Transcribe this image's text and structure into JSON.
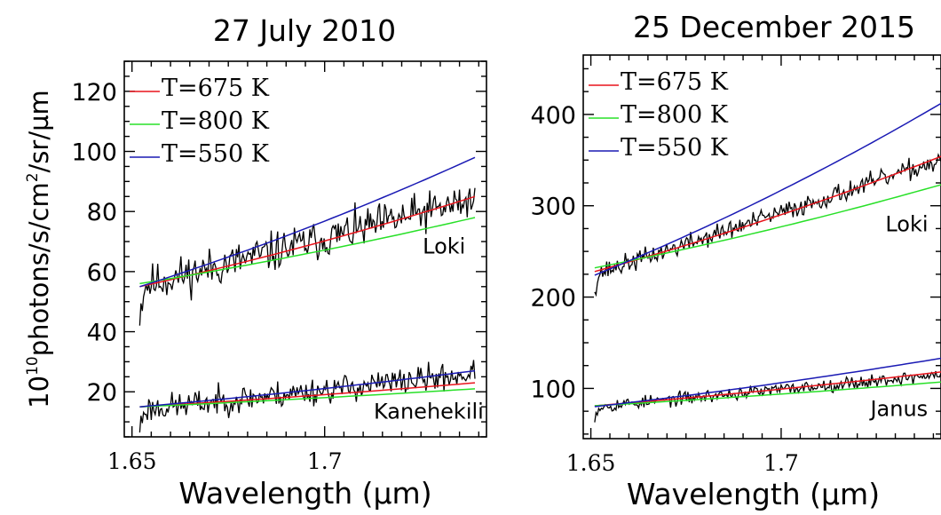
{
  "chart_data": [
    {
      "type": "line",
      "title": "27 July 2010",
      "xlabel": "Wavelength (µm)",
      "ylabel_base": "10",
      "ylabel_exp": "10",
      "ylabel_rest": "photons/s/cm",
      "ylabel_exp2": "2",
      "ylabel_tail": "/sr/µm",
      "xlim": [
        1.648,
        1.742
      ],
      "ylim": [
        5,
        130
      ],
      "xticks": [
        1.65,
        1.7
      ],
      "xtick_labels": [
        "1.65",
        "1.7"
      ],
      "yticks": [
        20,
        40,
        60,
        80,
        100,
        120
      ],
      "ytick_labels": [
        "20",
        "40",
        "60",
        "80",
        "100",
        "120"
      ],
      "grid": false,
      "legend_placement": "top-left",
      "legend": [
        {
          "label": "T=675 K",
          "color": "#e8141c"
        },
        {
          "label": "T=800 K",
          "color": "#28e028"
        },
        {
          "label": "T=550 K",
          "color": "#1a1ab4"
        }
      ],
      "annotations": [
        {
          "text": "Loki",
          "x": 1.731,
          "y": 66
        },
        {
          "text": "Kanehekili",
          "x": 1.727,
          "y": 11
        }
      ],
      "groups": [
        {
          "observation": {
            "x0": 1.652,
            "x1": 1.739,
            "start": 55,
            "end": 84,
            "noise": 5.5,
            "seed": 11,
            "color": "#000000"
          },
          "models": [
            {
              "label": "T=675 K",
              "x": [
                1.652,
                1.739
              ],
              "y": [
                55,
                85
              ],
              "color": "#e8141c"
            },
            {
              "label": "T=800 K",
              "x": [
                1.652,
                1.739
              ],
              "y": [
                56,
                78
              ],
              "color": "#28e028"
            },
            {
              "label": "T=550 K",
              "x": [
                1.652,
                1.739
              ],
              "y": [
                55,
                98
              ],
              "color": "#1a1ab4"
            }
          ]
        },
        {
          "observation": {
            "x0": 1.652,
            "x1": 1.739,
            "start": 14,
            "end": 26,
            "noise": 3.8,
            "seed": 23,
            "color": "#000000"
          },
          "models": [
            {
              "label": "T=675 K",
              "x": [
                1.652,
                1.739
              ],
              "y": [
                15,
                23
              ],
              "color": "#e8141c"
            },
            {
              "label": "T=800 K",
              "x": [
                1.652,
                1.739
              ],
              "y": [
                15,
                21
              ],
              "color": "#28e028"
            },
            {
              "label": "T=550 K",
              "x": [
                1.652,
                1.739
              ],
              "y": [
                15,
                27
              ],
              "color": "#1a1ab4"
            }
          ]
        }
      ]
    },
    {
      "type": "line",
      "title": "25 December 2015",
      "xlabel": "Wavelength (µm)",
      "xlim": [
        1.648,
        1.742
      ],
      "ylim": [
        45,
        465
      ],
      "xticks": [
        1.65,
        1.7
      ],
      "xtick_labels": [
        "1.65",
        "1.7"
      ],
      "yticks": [
        100,
        200,
        300,
        400
      ],
      "ytick_labels": [
        "100",
        "200",
        "300",
        "400"
      ],
      "grid": false,
      "legend_placement": "top-left",
      "legend": [
        {
          "label": "T=675 K",
          "color": "#e8141c"
        },
        {
          "label": "T=800 K",
          "color": "#28e028"
        },
        {
          "label": "T=550 K",
          "color": "#1a1ab4"
        }
      ],
      "annotations": [
        {
          "text": "Loki",
          "x": 1.733,
          "y": 272
        },
        {
          "text": "Janus",
          "x": 1.731,
          "y": 70
        }
      ],
      "groups": [
        {
          "observation": {
            "x0": 1.651,
            "x1": 1.742,
            "start": 225,
            "end": 350,
            "noise": 9,
            "seed": 37,
            "color": "#000000"
          },
          "models": [
            {
              "label": "T=675 K",
              "x": [
                1.651,
                1.742
              ],
              "y": [
                228,
                354
              ],
              "color": "#e8141c"
            },
            {
              "label": "T=800 K",
              "x": [
                1.651,
                1.742
              ],
              "y": [
                232,
                323
              ],
              "color": "#28e028"
            },
            {
              "label": "T=550 K",
              "x": [
                1.651,
                1.742
              ],
              "y": [
                224,
                412
              ],
              "color": "#1a1ab4"
            }
          ]
        },
        {
          "observation": {
            "x0": 1.651,
            "x1": 1.742,
            "start": 80,
            "end": 115,
            "noise": 6,
            "seed": 53,
            "color": "#000000"
          },
          "models": [
            {
              "label": "T=675 K",
              "x": [
                1.651,
                1.742
              ],
              "y": [
                81,
                118
              ],
              "color": "#e8141c"
            },
            {
              "label": "T=800 K",
              "x": [
                1.651,
                1.742
              ],
              "y": [
                81,
                107
              ],
              "color": "#28e028"
            },
            {
              "label": "T=550 K",
              "x": [
                1.651,
                1.742
              ],
              "y": [
                80,
                133
              ],
              "color": "#1a1ab4"
            }
          ]
        }
      ]
    }
  ]
}
